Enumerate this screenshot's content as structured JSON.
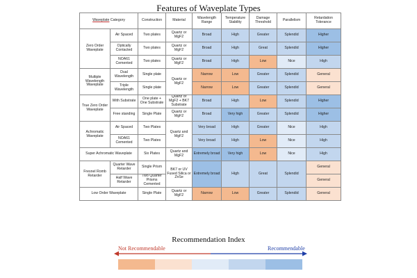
{
  "title": "Features of Waveplate Types",
  "headers": {
    "category": "Waveplate Category",
    "category_link": "Waveplate",
    "category_rest": " Category",
    "construction": "Construction",
    "material": "Material",
    "wavelength": "Wavelength Range",
    "temperature": "Temperature Stability",
    "damage": "Damage Threshold",
    "parallelism": "Parallelism",
    "retardation": "Retardation Tolerance"
  },
  "groups": {
    "zero_order": "Zero Order Waveplate",
    "multiple": "Multiple Wavelength Waveplate",
    "true_zero": "True Zero Order Waveplate",
    "achromatic": "Achromatic Waveplate",
    "super_achromatic": "Super Achromatic Waveplate",
    "fresnel": "Fresnel Romb Retarder",
    "low_order": "Low Order Waveplate"
  },
  "rows": [
    {
      "sub": "Air Spaced",
      "construction": "Two plates",
      "material": "Quartz or MgF2",
      "wavelength": "Broad",
      "temperature": "High",
      "damage": "Greater",
      "parallelism": "Splendid",
      "retardation": "Higher"
    },
    {
      "sub": "Optically Contacted",
      "construction": "Two plates",
      "material": "Quartz or MgF2",
      "wavelength": "Broad",
      "temperature": "High",
      "damage": "Great",
      "parallelism": "Splendid",
      "retardation": "Higher"
    },
    {
      "sub": "NOA61 Cemented",
      "construction": "Two plates",
      "material": "Quartz or MgF2",
      "wavelength": "Broad",
      "temperature": "High",
      "damage": "Low",
      "parallelism": "Nice",
      "retardation": "High"
    },
    {
      "sub": "Dual Wavelength",
      "construction": "Single plate",
      "material": "Quartz or MgF2",
      "wavelength": "Narrow",
      "temperature": "Low",
      "damage": "Greater",
      "parallelism": "Splendid",
      "retardation": "General"
    },
    {
      "sub": "Triple Wavelength",
      "construction": "Single plate",
      "material": "",
      "wavelength": "Narrow",
      "temperature": "Low",
      "damage": "Greater",
      "parallelism": "Splendid",
      "retardation": "General"
    },
    {
      "sub": "With Substrate",
      "construction": "One plate + One Substrate",
      "material": "Quartz or MgF2 + BK7 Substrate",
      "wavelength": "Broad",
      "temperature": "High",
      "damage": "Low",
      "parallelism": "Splendid",
      "retardation": "Higher"
    },
    {
      "sub": "Free standing",
      "construction": "Single Plate",
      "material": "Quartz or MgF2",
      "wavelength": "Broad",
      "temperature": "Very high",
      "damage": "Greater",
      "parallelism": "Splendid",
      "retardation": "Higher"
    },
    {
      "sub": "Air Spaced",
      "construction": "Two Plates",
      "material": "Quartz and MgF2",
      "wavelength": "Very broad",
      "temperature": "High",
      "damage": "Greater",
      "parallelism": "Nice",
      "retardation": "High"
    },
    {
      "sub": "NOA61 Cemented",
      "construction": "Two Plates",
      "material": "",
      "wavelength": "Very broad",
      "temperature": "High",
      "damage": "Low",
      "parallelism": "Nice",
      "retardation": "High"
    },
    {
      "sub": "",
      "construction": "Six Plates",
      "material": "Quartz and MgF2",
      "wavelength": "Extremely broad",
      "temperature": "Very high",
      "damage": "Low",
      "parallelism": "Nice",
      "retardation": "High"
    },
    {
      "sub": "Quarter Wave Retarder",
      "construction": "Single Prism",
      "material": "BK7 or UV Fused Silica or ZnSe",
      "wavelength": "Extremely broad",
      "temperature": "High",
      "damage": "Great",
      "parallelism": "Splendid",
      "retardation": "General"
    },
    {
      "sub": "Half Wave Retarder",
      "construction": "Two Quarter Prisms Cemented",
      "material": "",
      "wavelength": "",
      "temperature": "",
      "damage": "",
      "parallelism": "",
      "retardation": "General"
    },
    {
      "sub": "",
      "construction": "Single Plate",
      "material": "Quartz or MgF2",
      "wavelength": "Narrow",
      "temperature": "Low",
      "damage": "Greater",
      "parallelism": "Splendid",
      "retardation": "General"
    }
  ],
  "legend": {
    "title": "Recommendation Index",
    "left_label": "Not Recommendable",
    "right_label": "Recommendable",
    "scale_colors": [
      "#f4b98f",
      "#fbe1d0",
      "#e1ebf7",
      "#c2d6ee",
      "#9cbfe5"
    ],
    "arrow_left_color": "#c0392b",
    "arrow_right_color": "#1f3fa8"
  }
}
